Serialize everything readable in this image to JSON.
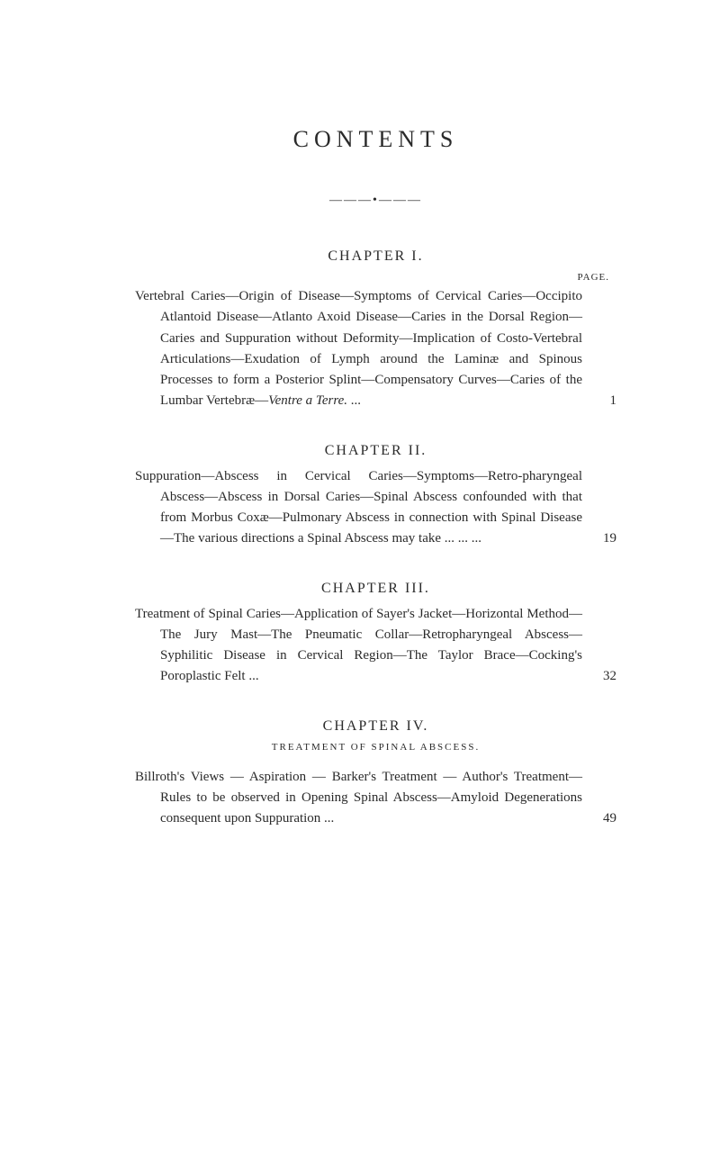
{
  "title": "CONTENTS",
  "divider": "———•———",
  "pageLabel": "PAGE.",
  "chapters": [
    {
      "heading": "CHAPTER I.",
      "entryPrefix": "Vertebral Caries—Origin of Disease—Symptoms of Cervical Caries—Occipito Atlantoid Disease—Atlanto Axoid Disease—Caries in the Dorsal Region—Caries and Suppuration without Deformity—Implication of Costo-Vertebral Articulations—Exudation of Lymph around the Laminæ and Spinous Processes to form a Posterior Splint—Compensatory Curves—Caries of the Lumbar Vertebræ—",
      "italicPart": "Ventre a Terre.",
      "entrySuffix": "       ...",
      "page": "1"
    },
    {
      "heading": "CHAPTER II.",
      "entryPrefix": "Suppuration—Abscess in Cervical Caries—Symptoms—Retro-pharyngeal Abscess—Abscess in Dorsal Caries—Spinal Abscess confounded with that from Morbus Coxæ—Pulmonary Abscess in connection with Spinal Disease—The various directions a Spinal Abscess may take     ...         ...        ...",
      "italicPart": "",
      "entrySuffix": "",
      "page": "19"
    },
    {
      "heading": "CHAPTER III.",
      "entryPrefix": "Treatment of Spinal Caries—Application of Sayer's Jacket—Horizontal Method—The Jury Mast—The Pneumatic Collar—Retropharyngeal Abscess—Syphilitic Disease in Cervical Region—The Taylor Brace—Cocking's Poroplastic Felt    ...",
      "italicPart": "",
      "entrySuffix": "",
      "page": "32"
    },
    {
      "heading": "CHAPTER IV.",
      "subheading": "TREATMENT OF SPINAL ABSCESS.",
      "entryPrefix": "Billroth's Views — Aspiration — Barker's Treatment — Author's Treatment—Rules to be observed in Opening Spinal Abscess—Amyloid Degenerations consequent upon Suppuration     ...",
      "italicPart": "",
      "entrySuffix": "",
      "page": "49"
    }
  ],
  "colors": {
    "background": "#ffffff",
    "text": "#2a2a2a"
  },
  "typography": {
    "title_fontsize": 26,
    "body_fontsize": 15,
    "heading_fontsize": 16,
    "subheading_fontsize": 11
  }
}
